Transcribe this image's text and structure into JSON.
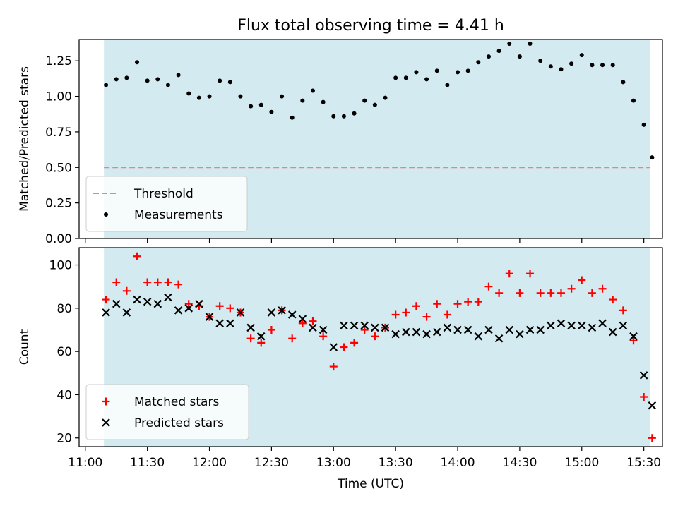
{
  "figure_title": "Flux total observing time = 4.41 h",
  "colors": {
    "band": "#d3eaf0",
    "threshold": "#f08080",
    "measurements": "#000000",
    "matched": "#ff0000",
    "predicted": "#000000"
  },
  "chart_data": [
    {
      "type": "scatter",
      "title": "Flux total observing time = 4.41 h",
      "xlabel": "",
      "ylabel": "Matched/Predicted stars",
      "ylim": [
        0.0,
        1.4
      ],
      "yticks": [
        0.0,
        0.25,
        0.5,
        0.75,
        1.0,
        1.25
      ],
      "ytick_labels": [
        "0.00",
        "0.25",
        "0.50",
        "0.75",
        "1.00",
        "1.25"
      ],
      "grid": false,
      "legend_position": "lower-left",
      "observing_window": [
        "11:09",
        "15:33"
      ],
      "threshold": {
        "name": "Threshold",
        "value": 0.5,
        "style": "dashed"
      },
      "series": [
        {
          "name": "Measurements",
          "marker": "dot",
          "x": [
            "11:10",
            "11:15",
            "11:20",
            "11:25",
            "11:30",
            "11:35",
            "11:40",
            "11:45",
            "11:50",
            "11:55",
            "12:00",
            "12:05",
            "12:10",
            "12:15",
            "12:20",
            "12:25",
            "12:30",
            "12:35",
            "12:40",
            "12:45",
            "12:50",
            "12:55",
            "13:00",
            "13:05",
            "13:10",
            "13:15",
            "13:20",
            "13:25",
            "13:30",
            "13:35",
            "13:40",
            "13:45",
            "13:50",
            "13:55",
            "14:00",
            "14:05",
            "14:10",
            "14:15",
            "14:20",
            "14:25",
            "14:30",
            "14:35",
            "14:40",
            "14:45",
            "14:50",
            "14:55",
            "15:00",
            "15:05",
            "15:10",
            "15:15",
            "15:20",
            "15:25",
            "15:30",
            "15:34"
          ],
          "y": [
            1.08,
            1.12,
            1.13,
            1.24,
            1.11,
            1.12,
            1.08,
            1.15,
            1.02,
            0.99,
            1.0,
            1.11,
            1.1,
            1.0,
            0.93,
            0.94,
            0.89,
            1.0,
            0.85,
            0.97,
            1.04,
            0.96,
            0.86,
            0.86,
            0.88,
            0.97,
            0.94,
            0.99,
            1.13,
            1.13,
            1.17,
            1.12,
            1.18,
            1.08,
            1.17,
            1.18,
            1.24,
            1.28,
            1.32,
            1.37,
            1.28,
            1.37,
            1.25,
            1.21,
            1.19,
            1.23,
            1.29,
            1.22,
            1.22,
            1.22,
            1.1,
            0.97,
            0.8,
            0.57
          ]
        }
      ]
    },
    {
      "type": "scatter",
      "xlabel": "Time (UTC)",
      "ylabel": "Count",
      "ylim": [
        16,
        108
      ],
      "yticks": [
        20,
        40,
        60,
        80,
        100
      ],
      "ytick_labels": [
        "20",
        "40",
        "60",
        "80",
        "100"
      ],
      "xlim": [
        "10:57",
        "15:39"
      ],
      "xticks": [
        "11:00",
        "11:30",
        "12:00",
        "12:30",
        "13:00",
        "13:30",
        "14:00",
        "14:30",
        "15:00",
        "15:30"
      ],
      "xtick_labels": [
        "11:00",
        "11:30",
        "12:00",
        "12:30",
        "13:00",
        "13:30",
        "14:00",
        "14:30",
        "15:00",
        "15:30"
      ],
      "grid": false,
      "legend_position": "lower-left",
      "observing_window": [
        "11:09",
        "15:33"
      ],
      "series": [
        {
          "name": "Matched stars",
          "marker": "plus",
          "x": [
            "11:10",
            "11:15",
            "11:20",
            "11:25",
            "11:30",
            "11:35",
            "11:40",
            "11:45",
            "11:50",
            "11:55",
            "12:00",
            "12:05",
            "12:10",
            "12:15",
            "12:20",
            "12:25",
            "12:30",
            "12:35",
            "12:40",
            "12:45",
            "12:50",
            "12:55",
            "13:00",
            "13:05",
            "13:10",
            "13:15",
            "13:20",
            "13:25",
            "13:30",
            "13:35",
            "13:40",
            "13:45",
            "13:50",
            "13:55",
            "14:00",
            "14:05",
            "14:10",
            "14:15",
            "14:20",
            "14:25",
            "14:30",
            "14:35",
            "14:40",
            "14:45",
            "14:50",
            "14:55",
            "15:00",
            "15:05",
            "15:10",
            "15:15",
            "15:20",
            "15:25",
            "15:30",
            "15:34"
          ],
          "y": [
            84,
            92,
            88,
            104,
            92,
            92,
            92,
            91,
            82,
            81,
            76,
            81,
            80,
            78,
            66,
            64,
            70,
            79,
            66,
            73,
            74,
            67,
            53,
            62,
            64,
            70,
            67,
            71,
            77,
            78,
            81,
            76,
            82,
            77,
            82,
            83,
            83,
            90,
            87,
            96,
            87,
            96,
            87,
            87,
            87,
            89,
            93,
            87,
            89,
            84,
            79,
            65,
            39,
            20
          ]
        },
        {
          "name": "Predicted stars",
          "marker": "x",
          "x": [
            "11:10",
            "11:15",
            "11:20",
            "11:25",
            "11:30",
            "11:35",
            "11:40",
            "11:45",
            "11:50",
            "11:55",
            "12:00",
            "12:05",
            "12:10",
            "12:15",
            "12:20",
            "12:25",
            "12:30",
            "12:35",
            "12:40",
            "12:45",
            "12:50",
            "12:55",
            "13:00",
            "13:05",
            "13:10",
            "13:15",
            "13:20",
            "13:25",
            "13:30",
            "13:35",
            "13:40",
            "13:45",
            "13:50",
            "13:55",
            "14:00",
            "14:05",
            "14:10",
            "14:15",
            "14:20",
            "14:25",
            "14:30",
            "14:35",
            "14:40",
            "14:45",
            "14:50",
            "14:55",
            "15:00",
            "15:05",
            "15:10",
            "15:15",
            "15:20",
            "15:25",
            "15:30",
            "15:34"
          ],
          "y": [
            78,
            82,
            78,
            84,
            83,
            82,
            85,
            79,
            80,
            82,
            76,
            73,
            73,
            78,
            71,
            67,
            78,
            79,
            77,
            75,
            71,
            70,
            62,
            72,
            72,
            72,
            71,
            71,
            68,
            69,
            69,
            68,
            69,
            71,
            70,
            70,
            67,
            70,
            66,
            70,
            68,
            70,
            70,
            72,
            73,
            72,
            72,
            71,
            73,
            69,
            72,
            67,
            49,
            35
          ]
        }
      ]
    }
  ]
}
